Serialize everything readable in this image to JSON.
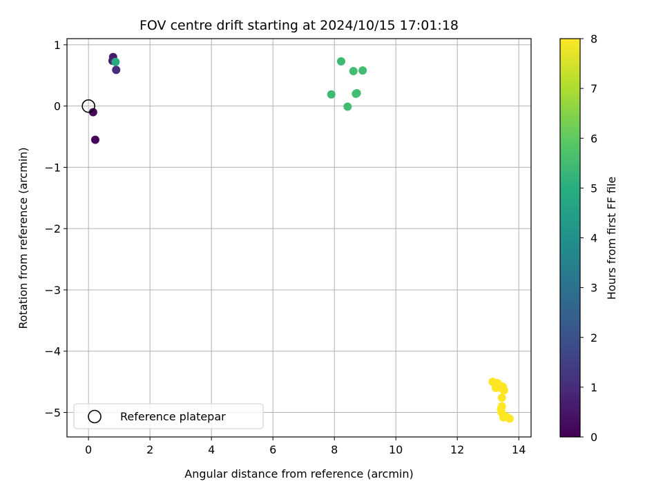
{
  "chart_data": {
    "type": "scatter",
    "title": "FOV centre drift starting at 2024/10/15 17:01:18",
    "xlabel": "Angular distance from reference (arcmin)",
    "ylabel": "Rotation from reference (arcmin)",
    "xlim": [
      -0.7,
      14.4
    ],
    "ylim": [
      -5.4,
      1.1
    ],
    "xticks": [
      0,
      2,
      4,
      6,
      8,
      10,
      12,
      14
    ],
    "yticks": [
      1,
      0,
      -1,
      -2,
      -3,
      -4,
      -5
    ],
    "xtick_labels": [
      "0",
      "2",
      "4",
      "6",
      "8",
      "10",
      "12",
      "14"
    ],
    "ytick_labels": [
      "1",
      "0",
      "−1",
      "−2",
      "−3",
      "−4",
      "−5"
    ],
    "grid": true,
    "legend": {
      "position": "lower-left",
      "entries": [
        "Reference platepar"
      ]
    },
    "reference_point": {
      "x": 0,
      "y": 0
    },
    "colorbar": {
      "label": "Hours from first FF file",
      "range": [
        0,
        8
      ],
      "ticks": [
        0,
        1,
        2,
        3,
        4,
        5,
        6,
        7,
        8
      ],
      "tick_labels": [
        "0",
        "1",
        "2",
        "3",
        "4",
        "5",
        "6",
        "7",
        "8"
      ],
      "colormap": "viridis"
    },
    "points": [
      {
        "x": 0.22,
        "y": -0.55,
        "hours": 0.1
      },
      {
        "x": 0.15,
        "y": -0.1,
        "hours": 0.2
      },
      {
        "x": 0.8,
        "y": 0.8,
        "hours": 0.6
      },
      {
        "x": 0.78,
        "y": 0.74,
        "hours": 0.8
      },
      {
        "x": 0.9,
        "y": 0.59,
        "hours": 1.0
      },
      {
        "x": 0.88,
        "y": 0.72,
        "hours": 4.9
      },
      {
        "x": 7.9,
        "y": 0.19,
        "hours": 5.4
      },
      {
        "x": 8.22,
        "y": 0.73,
        "hours": 5.4
      },
      {
        "x": 8.43,
        "y": -0.01,
        "hours": 5.5
      },
      {
        "x": 8.62,
        "y": 0.57,
        "hours": 5.5
      },
      {
        "x": 8.7,
        "y": 0.2,
        "hours": 5.5
      },
      {
        "x": 8.73,
        "y": 0.21,
        "hours": 5.5
      },
      {
        "x": 8.92,
        "y": 0.58,
        "hours": 5.5
      },
      {
        "x": 13.15,
        "y": -4.5,
        "hours": 8.0
      },
      {
        "x": 13.25,
        "y": -4.6,
        "hours": 8.0
      },
      {
        "x": 13.3,
        "y": -4.52,
        "hours": 8.0
      },
      {
        "x": 13.35,
        "y": -4.55,
        "hours": 8.0
      },
      {
        "x": 13.42,
        "y": -4.6,
        "hours": 8.0
      },
      {
        "x": 13.48,
        "y": -4.58,
        "hours": 8.0
      },
      {
        "x": 13.52,
        "y": -4.64,
        "hours": 8.0
      },
      {
        "x": 13.45,
        "y": -4.76,
        "hours": 8.0
      },
      {
        "x": 13.42,
        "y": -4.95,
        "hours": 8.0
      },
      {
        "x": 13.45,
        "y": -4.9,
        "hours": 8.0
      },
      {
        "x": 13.44,
        "y": -5.0,
        "hours": 8.0
      },
      {
        "x": 13.5,
        "y": -5.08,
        "hours": 8.0
      },
      {
        "x": 13.6,
        "y": -5.07,
        "hours": 8.0
      },
      {
        "x": 13.7,
        "y": -5.1,
        "hours": 8.0
      }
    ]
  }
}
